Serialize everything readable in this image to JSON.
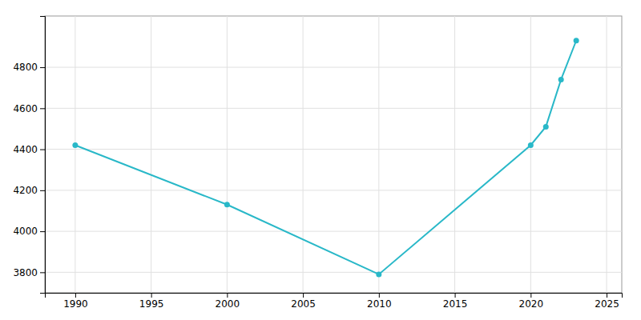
{
  "chart_data": {
    "type": "line",
    "x": [
      1990,
      2000,
      2010,
      2020,
      2021,
      2022,
      2023
    ],
    "values": [
      4420,
      4130,
      3790,
      4420,
      4510,
      4740,
      4930
    ],
    "color": "#29b8c8",
    "marker": "circle",
    "xlim": [
      1988,
      2026
    ],
    "ylim": [
      3700,
      5050
    ],
    "xticks": [
      1990,
      1995,
      2000,
      2005,
      2010,
      2015,
      2020,
      2025
    ],
    "yticks": [
      3800,
      4000,
      4200,
      4400,
      4600,
      4800
    ],
    "grid": true
  }
}
